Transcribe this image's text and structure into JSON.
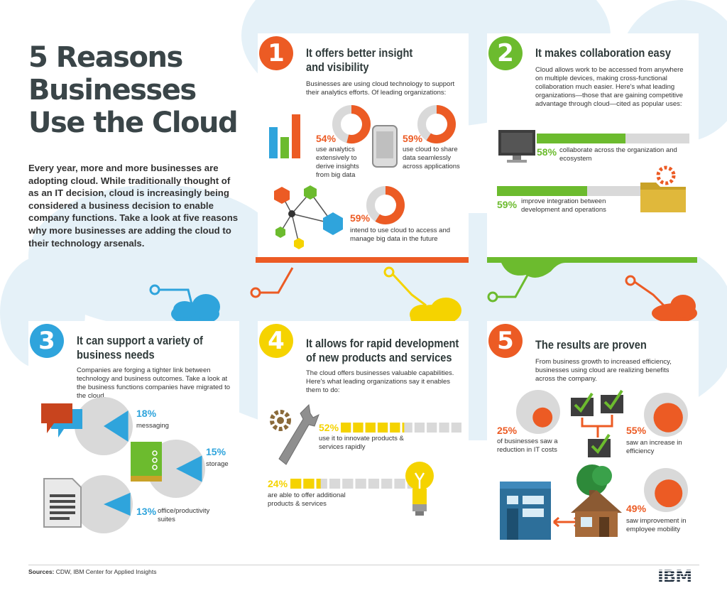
{
  "colors": {
    "orange": "#ec5b24",
    "green": "#6cbb2e",
    "blue": "#2fa4dc",
    "yellow": "#f5d300",
    "grey": "#d9d9d9",
    "bg": "#e5f1f8"
  },
  "header": {
    "title_lines": [
      "5 Reasons",
      "Businesses",
      "Use the Cloud"
    ]
  },
  "intro": "Every year, more and more businesses are adopting cloud. While traditionally thought of as an IT decision, cloud is increasingly being considered a business decision to enable company functions. Take a look at five reasons why more businesses are adding the cloud to their technology arsenals.",
  "panels": {
    "p1": {
      "number": "1",
      "title_lines": [
        "It offers better insight",
        "and visibility"
      ],
      "intro": "Businesses are using cloud technology to support their analytics efforts. Of leading organizations:",
      "stats": [
        {
          "pct": "54%",
          "value": 54,
          "text": "use analytics extensively to derive insights from big data"
        },
        {
          "pct": "59%",
          "value": 59,
          "text": "use cloud to share data seamlessly across applications"
        },
        {
          "pct": "59%",
          "value": 59,
          "text": "intend to use cloud to access and manage big data in the future"
        }
      ],
      "icons": [
        "bar-chart-icon",
        "tablet-icon",
        "network-icon"
      ]
    },
    "p2": {
      "number": "2",
      "title": "It makes collaboration easy",
      "intro": "Cloud allows work to be accessed from anywhere on multiple devices, making cross-functional collaboration much easier. Here's what leading organizations—those that are gaining competitive advantage through cloud—cited as popular uses:",
      "stats": [
        {
          "pct": "58%",
          "value": 58,
          "text": "collaborate across the organization and ecosystem"
        },
        {
          "pct": "59%",
          "value": 59,
          "text": "improve integration between development and operations"
        }
      ]
    },
    "p3": {
      "number": "3",
      "title_lines": [
        "It can support a variety of",
        "business needs"
      ],
      "intro": "Companies are forging a tighter link between technology and business outcomes. Take a look at the business functions companies have migrated to the cloud.",
      "stats": [
        {
          "pct": "18%",
          "value": 18,
          "text": "messaging"
        },
        {
          "pct": "15%",
          "value": 15,
          "text": "storage"
        },
        {
          "pct": "13%",
          "value": 13,
          "text": "office/productivity suites"
        }
      ]
    },
    "p4": {
      "number": "4",
      "title_lines": [
        "It allows for rapid development",
        "of new products and services"
      ],
      "intro": "The cloud offers businesses valuable capabilities. Here's what leading organizations say it enables them to do:",
      "stats": [
        {
          "pct": "52%",
          "value": 52,
          "text": "use it to innovate products & services rapidly"
        },
        {
          "pct": "24%",
          "value": 24,
          "text": "are able to offer additional products & services"
        }
      ]
    },
    "p5": {
      "number": "5",
      "title": "The results are proven",
      "intro": "From business growth to increased efficiency, businesses using cloud are realizing benefits across the company.",
      "stats": [
        {
          "pct": "25%",
          "value": 25,
          "text": "of businesses saw a reduction in IT costs"
        },
        {
          "pct": "55%",
          "value": 55,
          "text": "saw an increase in efficiency"
        },
        {
          "pct": "49%",
          "value": 49,
          "text": "saw improvement in employee mobility"
        }
      ]
    }
  },
  "footer": {
    "label": "Sources:",
    "text": " CDW, IBM Center for Applied Insights"
  },
  "logo": "IBM"
}
